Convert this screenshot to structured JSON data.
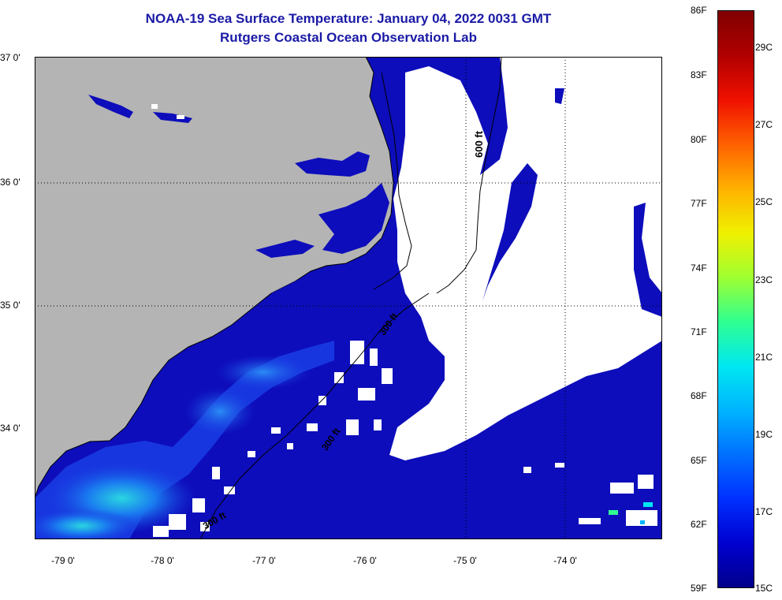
{
  "header": {
    "title": "NOAA-19 Sea Surface Temperature:  January 04, 2022 0031 GMT",
    "subtitle": "Rutgers Coastal Ocean Observation Lab"
  },
  "latitude_labels": [
    "37 0'",
    "36 0'",
    "35 0'",
    "34 0'"
  ],
  "longitude_labels": [
    "-79 0'",
    "-78 0'",
    "-77 0'",
    "-76 0'",
    "-75 0'",
    "-74 0'"
  ],
  "isobath_labels": [
    "600 ft",
    "300 ft",
    "300 ft",
    "300 ft"
  ],
  "colorbar": {
    "fahrenheit_labels": [
      "86F",
      "83F",
      "80F",
      "77F",
      "74F",
      "71F",
      "68F",
      "65F",
      "62F",
      "59F"
    ],
    "celsius_labels": [
      "29C",
      "27C",
      "25C",
      "23C",
      "21C",
      "19C",
      "17C",
      "15C"
    ],
    "min_f": 59,
    "max_f": 86,
    "gradient": [
      "#00008c",
      "#0000d0",
      "#0030ff",
      "#0070ff",
      "#00b4ff",
      "#00e8f0",
      "#30ff90",
      "#a0ff30",
      "#f0f000",
      "#ffb000",
      "#ff6000",
      "#f01000",
      "#b00000",
      "#800000"
    ]
  },
  "colors": {
    "land": "#b4b4b4",
    "ocean_cold": "#0d0dbb",
    "cloud": "#ffffff",
    "title": "#1a1aa6"
  }
}
